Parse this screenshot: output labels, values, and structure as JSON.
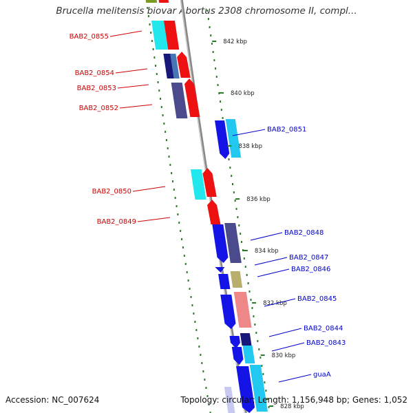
{
  "title": "Brucella melitensis biovar Abortus 2308 chromosome II, compl...",
  "footer": {
    "accession": "Accession: NC_007624",
    "topology": "Topology: circular; Length: 1,156,948 bp; Genes: 1,052"
  },
  "ticks": [
    {
      "label": "842 kbp"
    },
    {
      "label": "840 kbp"
    },
    {
      "label": "838 kbp"
    },
    {
      "label": "836 kbp"
    },
    {
      "label": "834 kbp"
    },
    {
      "label": "832 kbp"
    },
    {
      "label": "830 kbp"
    },
    {
      "label": "828 kbp"
    }
  ],
  "genes": [
    {
      "name": "BAB2_0855",
      "strand": "reverse",
      "label_color": "#cc0000",
      "line_color": "#cc0000"
    },
    {
      "name": "BAB2_0854",
      "strand": "reverse",
      "label_color": "#cc0000",
      "line_color": "#cc0000"
    },
    {
      "name": "BAB2_0853",
      "strand": "reverse",
      "label_color": "#cc0000",
      "line_color": "#cc0000"
    },
    {
      "name": "BAB2_0852",
      "strand": "reverse",
      "label_color": "#cc0000",
      "line_color": "#cc0000"
    },
    {
      "name": "BAB2_0851",
      "strand": "forward",
      "label_color": "#0000cc",
      "line_color": "#0000cc"
    },
    {
      "name": "BAB2_0850",
      "strand": "reverse",
      "label_color": "#cc0000",
      "line_color": "#cc0000"
    },
    {
      "name": "BAB2_0849",
      "strand": "reverse",
      "label_color": "#cc0000",
      "line_color": "#cc0000"
    },
    {
      "name": "BAB2_0848",
      "strand": "forward",
      "label_color": "#0000cc",
      "line_color": "#0000cc"
    },
    {
      "name": "BAB2_0847",
      "strand": "forward",
      "label_color": "#0000cc",
      "line_color": "#0000cc"
    },
    {
      "name": "BAB2_0846",
      "strand": "forward",
      "label_color": "#0000cc",
      "line_color": "#0000cc"
    },
    {
      "name": "BAB2_0845",
      "strand": "forward",
      "label_color": "#0000cc",
      "line_color": "#0000cc"
    },
    {
      "name": "BAB2_0844",
      "strand": "forward",
      "label_color": "#0000cc",
      "line_color": "#0000cc"
    },
    {
      "name": "BAB2_0843",
      "strand": "forward",
      "label_color": "#0000cc",
      "line_color": "#0000cc"
    },
    {
      "name": "guaA",
      "strand": "forward",
      "label_color": "#0000cc",
      "line_color": "#0000cc"
    }
  ],
  "colors": {
    "forward_dark": "#1414e6",
    "forward_light": "#22c8f0",
    "reverse": "#ee1111",
    "reverse_light": "#22e8ee",
    "cog_navy": "#18187a",
    "cog_slate": "#4a4a8c",
    "cog_steel": "#4676b4",
    "cog_olive": "#b8ae6e",
    "cog_salmon": "#ee8888",
    "backbone": "#888888",
    "tick": "#2a7a2a"
  }
}
